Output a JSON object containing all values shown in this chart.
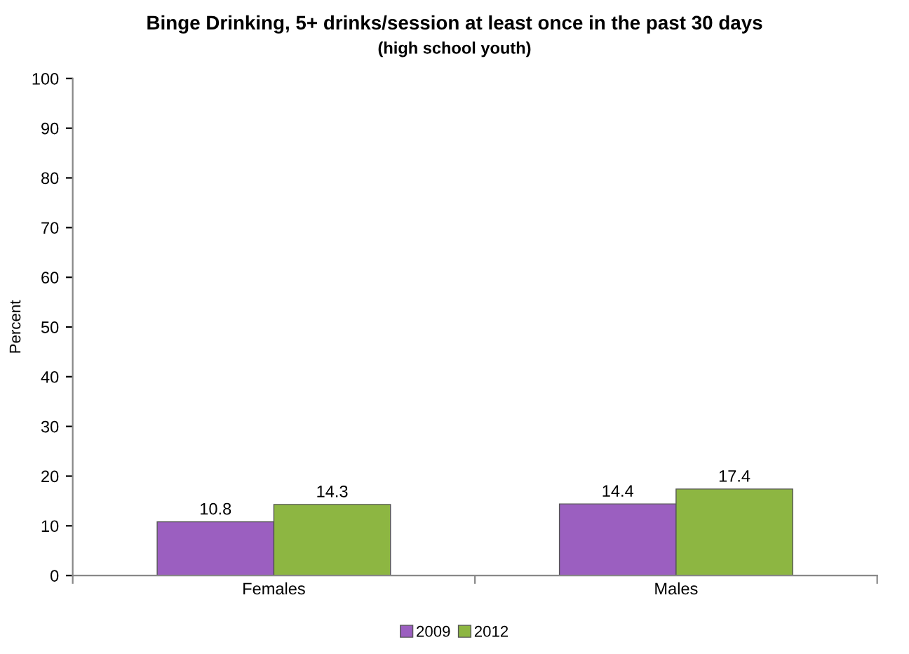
{
  "chart_data": {
    "type": "bar",
    "title": "Binge Drinking, 5+ drinks/session at least once in the past 30 days",
    "subtitle": "(high school youth)",
    "ylabel": "Percent",
    "categories": [
      "Females",
      "Males"
    ],
    "series": [
      {
        "name": "2009",
        "color": "#9b5fc0",
        "values": [
          10.8,
          14.4
        ]
      },
      {
        "name": "2012",
        "color": "#8db642",
        "values": [
          14.3,
          17.4
        ]
      }
    ],
    "ylim": [
      0,
      100
    ],
    "yticks": [
      0,
      10,
      20,
      30,
      40,
      50,
      60,
      70,
      80,
      90,
      100
    ],
    "data_labels": true,
    "legend": "bottom",
    "grid": false
  }
}
